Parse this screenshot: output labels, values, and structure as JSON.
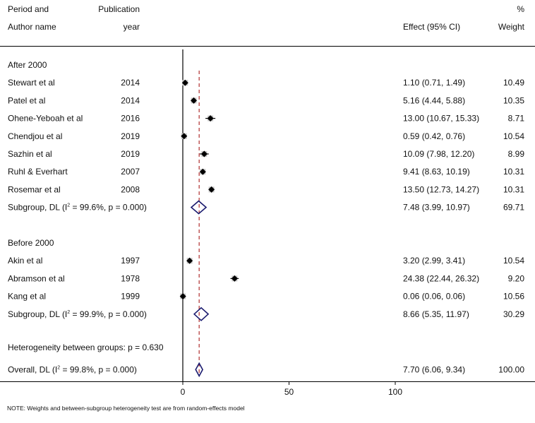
{
  "chart_data": {
    "type": "forest",
    "headers": {
      "col1_line1": "Period and",
      "col1_line2": "Author name",
      "col2_line1": "Publication",
      "col2_line2": "year",
      "col3_line2": "Effect (95% CI)",
      "col4_line1": "%",
      "col4_line2": "Weight"
    },
    "axis": {
      "ticks": [
        0,
        50,
        100
      ],
      "xlim": [
        0,
        100
      ],
      "null_line": 0
    },
    "overall_effect": 7.7,
    "groups": [
      {
        "label": "After 2000",
        "studies": [
          {
            "author": "Stewart et al",
            "year": "2014",
            "effect": 1.1,
            "lo": 0.71,
            "hi": 1.49,
            "ci_text": "1.10 (0.71, 1.49)",
            "weight": "10.49"
          },
          {
            "author": "Patel et al",
            "year": "2014",
            "effect": 5.16,
            "lo": 4.44,
            "hi": 5.88,
            "ci_text": "5.16 (4.44, 5.88)",
            "weight": "10.35"
          },
          {
            "author": "Ohene-Yeboah et al",
            "year": "2016",
            "effect": 13.0,
            "lo": 10.67,
            "hi": 15.33,
            "ci_text": "13.00 (10.67, 15.33)",
            "weight": "8.71"
          },
          {
            "author": "Chendjou et al",
            "year": "2019",
            "effect": 0.59,
            "lo": 0.42,
            "hi": 0.76,
            "ci_text": "0.59 (0.42, 0.76)",
            "weight": "10.54"
          },
          {
            "author": "Sazhin et al",
            "year": "2019",
            "effect": 10.09,
            "lo": 7.98,
            "hi": 12.2,
            "ci_text": "10.09 (7.98, 12.20)",
            "weight": "8.99"
          },
          {
            "author": "Ruhl & Everhart",
            "year": "2007",
            "effect": 9.41,
            "lo": 8.63,
            "hi": 10.19,
            "ci_text": "9.41 (8.63, 10.19)",
            "weight": "10.31"
          },
          {
            "author": "Rosemar et al",
            "year": "2008",
            "effect": 13.5,
            "lo": 12.73,
            "hi": 14.27,
            "ci_text": "13.50 (12.73, 14.27)",
            "weight": "10.31"
          }
        ],
        "subgroup": {
          "label_pre": "Subgroup, DL (I",
          "sup": "2",
          "label_post": " = 99.6%, p = 0.000)",
          "effect": 7.48,
          "lo": 3.99,
          "hi": 10.97,
          "ci_text": "7.48 (3.99, 10.97)",
          "weight": "69.71"
        }
      },
      {
        "label": "Before 2000",
        "studies": [
          {
            "author": "Akin et al",
            "year": "1997",
            "effect": 3.2,
            "lo": 2.99,
            "hi": 3.41,
            "ci_text": "3.20 (2.99, 3.41)",
            "weight": "10.54"
          },
          {
            "author": "Abramson et al",
            "year": "1978",
            "effect": 24.38,
            "lo": 22.44,
            "hi": 26.32,
            "ci_text": "24.38 (22.44, 26.32)",
            "weight": "9.20"
          },
          {
            "author": "Kang et al",
            "year": "1999",
            "effect": 0.06,
            "lo": 0.06,
            "hi": 0.06,
            "ci_text": "0.06 (0.06, 0.06)",
            "weight": "10.56"
          }
        ],
        "subgroup": {
          "label_pre": "Subgroup, DL (I",
          "sup": "2",
          "label_post": " = 99.9%, p = 0.000)",
          "effect": 8.66,
          "lo": 5.35,
          "hi": 11.97,
          "ci_text": "8.66 (5.35, 11.97)",
          "weight": "30.29"
        }
      }
    ],
    "heterogeneity": "Heterogeneity between groups: p = 0.630",
    "overall": {
      "label_pre": "Overall, DL (I",
      "sup": "2",
      "label_post": " = 99.8%, p = 0.000)",
      "effect": 7.7,
      "lo": 6.06,
      "hi": 9.34,
      "ci_text": "7.70 (6.06, 9.34)",
      "weight": "100.00"
    },
    "note": "NOTE: Weights and between-subgroup heterogeneity test are from random-effects model",
    "colors": {
      "line": "#000000",
      "ref_line": "#b03030",
      "diamond": "#1a1a6e",
      "marker": "#000000",
      "marker_box": "#c8c8c8"
    }
  }
}
